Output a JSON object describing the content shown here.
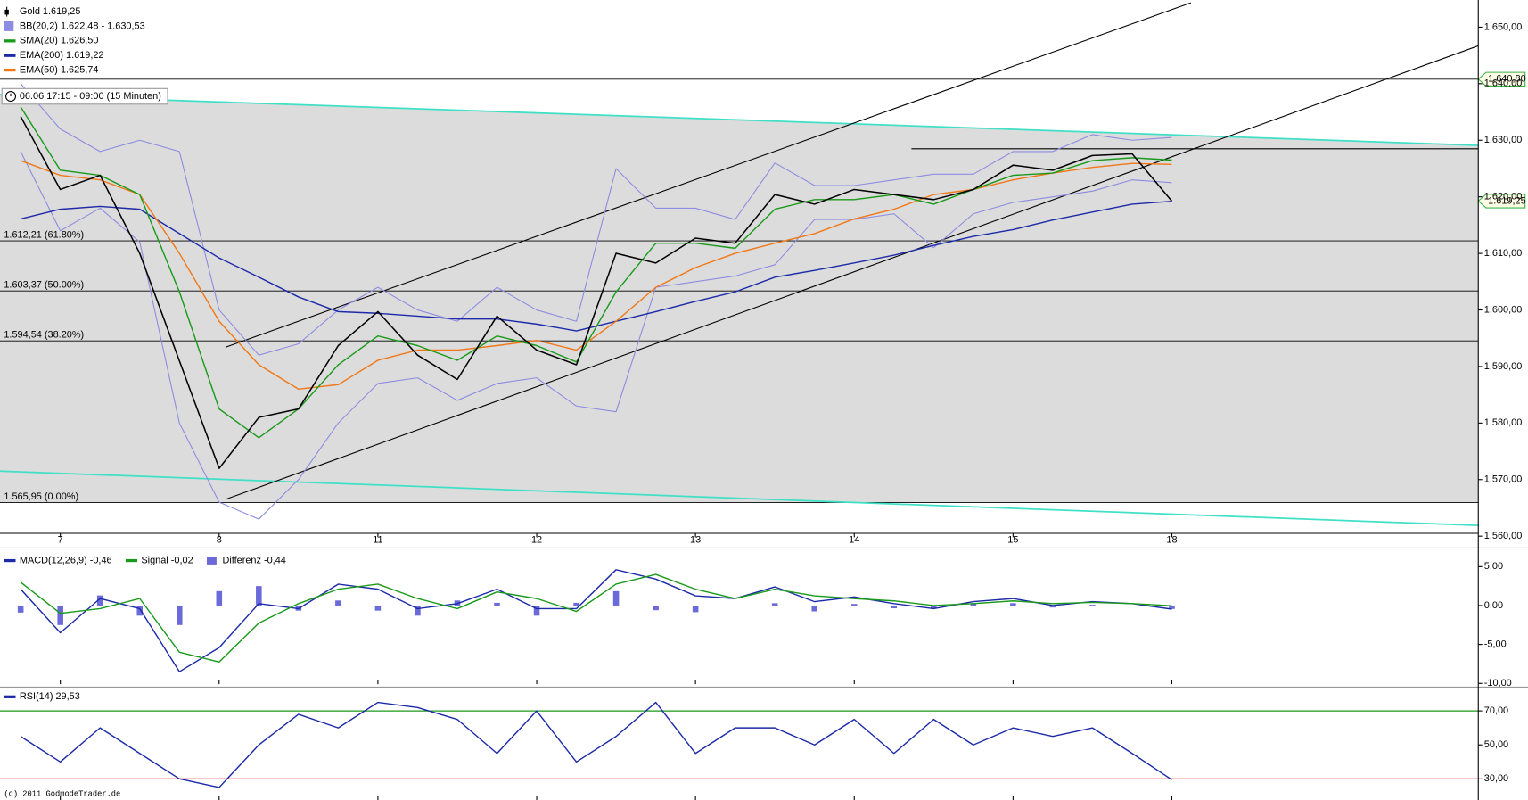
{
  "header": {
    "range": "06.06 17:15 - 09:00 (15 Minuten)",
    "copyright": "(c) 2011 GodmodeTrader.de"
  },
  "chart_data": [
    {
      "type": "price",
      "x": [
        0.75,
        1,
        1.25,
        1.5,
        1.75,
        2,
        2.25,
        2.5,
        2.75,
        3,
        3.25,
        3.5,
        3.75,
        4,
        4.25,
        4.5,
        4.75,
        5,
        5.25,
        5.5,
        5.75,
        6,
        6.25,
        6.5,
        6.75,
        7,
        7.25,
        7.5,
        7.75,
        8
      ],
      "xlim": [
        0.62,
        9.93
      ],
      "xticks": [
        {
          "value": 1,
          "label": "7"
        },
        {
          "value": 2,
          "label": "8"
        },
        {
          "value": 3,
          "label": "11"
        },
        {
          "value": 4,
          "label": "12"
        },
        {
          "value": 5,
          "label": "13"
        },
        {
          "value": 6,
          "label": "14"
        },
        {
          "value": 7,
          "label": "15"
        },
        {
          "value": 8,
          "label": "18"
        }
      ],
      "ylim": [
        1560.5,
        1654.8
      ],
      "yticks": [
        {
          "value": 1560,
          "label": "1.560,00"
        },
        {
          "value": 1570,
          "label": "1.570,00"
        },
        {
          "value": 1580,
          "label": "1.580,00"
        },
        {
          "value": 1590,
          "label": "1.590,00"
        },
        {
          "value": 1600,
          "label": "1.600,00"
        },
        {
          "value": 1610,
          "label": "1.610,00"
        },
        {
          "value": 1620,
          "label": "1.620,00"
        },
        {
          "value": 1630,
          "label": "1.630,00"
        },
        {
          "value": 1640,
          "label": "1.640,00"
        },
        {
          "value": 1650,
          "label": "1.650,00"
        }
      ],
      "series": [
        {
          "name": "Gold 1.619,25",
          "color": "#000000",
          "values": [
            1634.2,
            1621.3,
            1623.8,
            1610,
            1591,
            1572,
            1581,
            1582.5,
            1593.7,
            1599.7,
            1592,
            1587.7,
            1598.9,
            1592.9,
            1590.3,
            1610,
            1608.3,
            1612.7,
            1611.8,
            1620.4,
            1618.7,
            1621.3,
            1620.4,
            1619.5,
            1621.3,
            1625.6,
            1624.7,
            1627.3,
            1627.6,
            1619.25
          ]
        },
        {
          "name": "BB(20,2) 1.622,48 - 1.630,53",
          "color": "#8c8ce0",
          "values": [
            1640,
            1632,
            1628,
            1630,
            1628,
            1600,
            1592,
            1594,
            1600,
            1604,
            1600,
            1598,
            1604,
            1600,
            1598,
            1625,
            1618,
            1618,
            1616,
            1626,
            1622,
            1622,
            1623,
            1624,
            1624,
            1628,
            1628,
            1631,
            1630,
            1630.5
          ],
          "lower": [
            1628,
            1614,
            1618,
            1612,
            1580,
            1566,
            1563,
            1570,
            1580,
            1587,
            1588,
            1584,
            1587,
            1588,
            1583,
            1582,
            1604,
            1605,
            1606,
            1608,
            1616,
            1616,
            1617,
            1611,
            1617,
            1619,
            1620,
            1621,
            1623,
            1622.5
          ]
        },
        {
          "name": "SMA(20) 1.626,50",
          "color": "#1a9a1a",
          "values": [
            1635.9,
            1624.7,
            1623.8,
            1620.4,
            1603.2,
            1582.5,
            1577.4,
            1582.5,
            1590.3,
            1595.4,
            1593.7,
            1591.1,
            1595.4,
            1593.7,
            1590.8,
            1603.2,
            1611.8,
            1611.8,
            1610.9,
            1617.8,
            1619.5,
            1619.5,
            1620.4,
            1618.7,
            1621.3,
            1623.8,
            1624.2,
            1626.4,
            1626.9,
            1626.5
          ]
        },
        {
          "name": "EMA(200) 1.619,22",
          "color": "#1c2aa8",
          "values": [
            1616.1,
            1617.8,
            1618.3,
            1617.8,
            1613.5,
            1609.2,
            1605.8,
            1602.3,
            1599.7,
            1599.4,
            1598.9,
            1598.4,
            1598.4,
            1597.5,
            1596.3,
            1598,
            1599.7,
            1601.5,
            1603.2,
            1605.8,
            1607,
            1608.3,
            1609.7,
            1611.4,
            1613,
            1614.2,
            1615.9,
            1617.3,
            1618.7,
            1619.22
          ]
        },
        {
          "name": "EMA(50) 1.625,74",
          "color": "#f07818",
          "values": [
            1626.4,
            1623.8,
            1623,
            1620.4,
            1610,
            1598,
            1590.3,
            1586,
            1586.8,
            1591.1,
            1592.9,
            1592.9,
            1593.7,
            1594.6,
            1592.9,
            1598,
            1604,
            1607.5,
            1610,
            1611.8,
            1613.5,
            1616.1,
            1617.8,
            1620.4,
            1621.3,
            1623,
            1624.2,
            1625.2,
            1625.9,
            1625.74
          ]
        }
      ],
      "fib_levels": [
        {
          "value": 1612.21,
          "label": "1.612,21 (61.80%)"
        },
        {
          "value": 1603.37,
          "label": "1.603,37 (50.00%)"
        },
        {
          "value": 1594.54,
          "label": "1.594,54 (38.20%)"
        },
        {
          "value": 1565.95,
          "label": "1.565,95 (0.00%)"
        }
      ],
      "price_tags": [
        {
          "value": 1640.8,
          "label": "1.640,80",
          "line": true
        },
        {
          "value": 1619.25,
          "label": "1.619,25",
          "line": false
        }
      ],
      "lines": [
        {
          "x": [
            0.62,
            9.93
          ],
          "y": [
            1638.1,
            1629.1
          ],
          "color": "#40e0c8"
        },
        {
          "x": [
            0.62,
            9.93
          ],
          "y": [
            1571.5,
            1561.9
          ],
          "color": "#40e0c8"
        },
        {
          "x": [
            2.04,
            8.12
          ],
          "y": [
            1593.4,
            1654.3
          ],
          "color": "#000000"
        },
        {
          "x": [
            2.04,
            9.93
          ],
          "y": [
            1566.5,
            1646.7
          ],
          "color": "#000000"
        },
        {
          "x": [
            6.36,
            9.93
          ],
          "y": [
            1628.5,
            1628.5
          ],
          "color": "#000000"
        }
      ]
    },
    {
      "type": "macd",
      "x": [
        0.75,
        1,
        1.25,
        1.5,
        1.75,
        2,
        2.25,
        2.5,
        2.75,
        3,
        3.25,
        3.5,
        3.75,
        4,
        4.25,
        4.5,
        4.75,
        5,
        5.25,
        5.5,
        5.75,
        6,
        6.25,
        6.5,
        6.75,
        7,
        7.25,
        7.5,
        7.75,
        8
      ],
      "xlim": [
        0.62,
        9.93
      ],
      "ylim": [
        -10.1,
        7.4
      ],
      "yticks": [
        {
          "value": 5,
          "label": "5,00"
        },
        {
          "value": 0,
          "label": "0,00"
        },
        {
          "value": -5,
          "label": "-5,00"
        },
        {
          "value": -10,
          "label": "-10,00"
        }
      ],
      "series": [
        {
          "name": "MACD(12,26,9) -0,46",
          "color": "#1c2aa8",
          "kind": "line",
          "values": [
            2.1,
            -3.5,
            0.9,
            -0.4,
            -8.5,
            -5.4,
            0.25,
            -0.4,
            2.75,
            2.1,
            -0.4,
            0.25,
            2.1,
            -0.4,
            -0.4,
            4.6,
            3.4,
            1.25,
            0.9,
            2.4,
            0.5,
            1.1,
            0.25,
            -0.4,
            0.5,
            0.9,
            0,
            0.5,
            0.25,
            -0.46
          ]
        },
        {
          "name": "Signal -0,02",
          "color": "#1a9a1a",
          "kind": "line",
          "values": [
            3,
            -1,
            -0.4,
            0.9,
            -6,
            -7.25,
            -2.25,
            0.25,
            2.1,
            2.75,
            0.9,
            -0.4,
            1.75,
            0.9,
            -0.75,
            2.75,
            4,
            2.1,
            0.9,
            2.1,
            1.25,
            0.9,
            0.6,
            0,
            0.25,
            0.6,
            0.25,
            0.4,
            0.25,
            -0.02
          ]
        },
        {
          "name": "Differenz -0,44",
          "color": "#6a6ad8",
          "kind": "bar",
          "values": [
            -0.9,
            -2.5,
            1.3,
            -1.3,
            -2.5,
            1.85,
            2.5,
            -0.65,
            0.65,
            -0.65,
            -1.3,
            0.65,
            0.35,
            -1.3,
            0.35,
            1.85,
            -0.6,
            -0.85,
            0,
            0.3,
            -0.75,
            0.2,
            -0.35,
            -0.4,
            0.25,
            0.3,
            -0.25,
            0.1,
            0,
            -0.44
          ]
        }
      ]
    },
    {
      "type": "rsi",
      "x": [
        0.75,
        1,
        1.25,
        1.5,
        1.75,
        2,
        2.25,
        2.5,
        2.75,
        3,
        3.25,
        3.5,
        3.75,
        4,
        4.25,
        4.5,
        4.75,
        5,
        5.25,
        5.5,
        5.75,
        6,
        6.25,
        6.5,
        6.75,
        7,
        7.25,
        7.5,
        7.75,
        8
      ],
      "xlim": [
        0.62,
        9.93
      ],
      "ylim": [
        17.6,
        84
      ],
      "yticks": [
        {
          "value": 70,
          "label": "70,00"
        },
        {
          "value": 50,
          "label": "50,00"
        },
        {
          "value": 30,
          "label": "30,00"
        }
      ],
      "levels": [
        {
          "value": 70,
          "color": "#1a9a1a"
        },
        {
          "value": 30,
          "color": "#d02020"
        }
      ],
      "series": [
        {
          "name": "RSI(14) 29,53",
          "color": "#1c2aa8",
          "kind": "line",
          "values": [
            55,
            40,
            60,
            45,
            30,
            25,
            50,
            68,
            60,
            75,
            72,
            65,
            45,
            70,
            40,
            55,
            75,
            45,
            60,
            60,
            50,
            65,
            45,
            65,
            50,
            60,
            55,
            60,
            45,
            29.53
          ]
        }
      ]
    }
  ]
}
